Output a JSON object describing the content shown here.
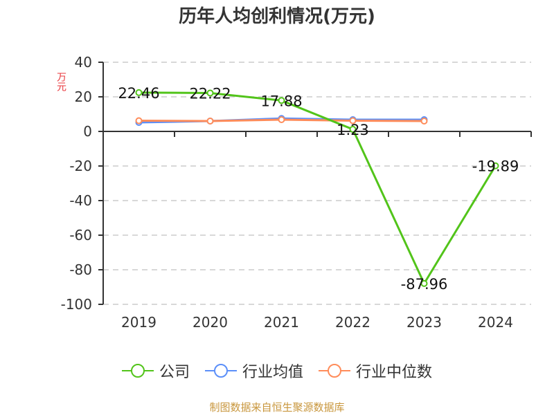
{
  "title": "历年人均创利情况(万元)",
  "y_axis_unit": "万元",
  "source_note": "制图数据来自恒生聚源数据库",
  "colors": {
    "company": "#52c41a",
    "industry_avg": "#5b8ff9",
    "industry_median": "#ff8c5a",
    "grid": "#cccccc",
    "axis": "#333333",
    "unit_label": "#e8343a",
    "source": "#c8963c"
  },
  "legend": [
    {
      "label": "公司",
      "color": "#52c41a",
      "icon": "line-circle-marker"
    },
    {
      "label": "行业均值",
      "color": "#5b8ff9",
      "icon": "line-circle-marker"
    },
    {
      "label": "行业中位数",
      "color": "#ff8c5a",
      "icon": "line-circle-marker"
    }
  ],
  "chart_data": {
    "type": "line",
    "title": "历年人均创利情况(万元)",
    "xlabel": "",
    "ylabel": "万元",
    "categories": [
      "2019",
      "2020",
      "2021",
      "2022",
      "2023",
      "2024"
    ],
    "yticks": [
      40,
      20,
      0,
      -20,
      -40,
      -60,
      -80,
      -100
    ],
    "ylim": [
      -100,
      40
    ],
    "grid": true,
    "legend_position": "bottom",
    "series": [
      {
        "name": "公司",
        "values": [
          22.46,
          22.22,
          17.88,
          1.23,
          -87.96,
          -19.89
        ],
        "labels": [
          "22.46",
          "22.22",
          "17.88",
          "1.23",
          "-87.96",
          "-19.89"
        ]
      },
      {
        "name": "行业均值",
        "values": [
          5.2,
          6.0,
          7.5,
          6.8,
          6.8,
          null
        ]
      },
      {
        "name": "行业中位数",
        "values": [
          6.2,
          6.0,
          6.8,
          6.2,
          6.0,
          null
        ]
      }
    ]
  }
}
